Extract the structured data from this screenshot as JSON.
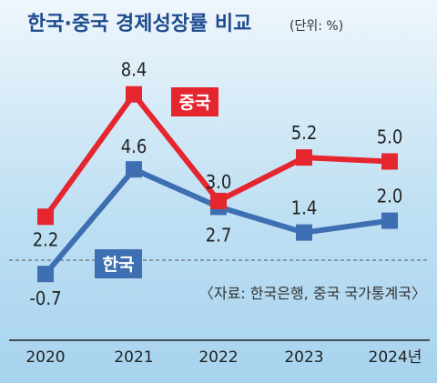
{
  "chart_data": {
    "type": "line",
    "title": "한국·중국 경제성장률 비교",
    "unit_label": "(단위: %)",
    "categories": [
      "2020",
      "2021",
      "2022",
      "2023",
      "2024년"
    ],
    "series": [
      {
        "name": "중국",
        "values": [
          2.2,
          8.4,
          3.0,
          5.2,
          5.0
        ],
        "color": "#e5262f",
        "labels": [
          "2.2",
          "8.4",
          "3.0",
          "5.2",
          "5.0"
        ]
      },
      {
        "name": "한국",
        "values": [
          -0.7,
          4.6,
          2.7,
          1.4,
          2.0
        ],
        "color": "#3d6fb2",
        "labels": [
          "-0.7",
          "4.6",
          "2.7",
          "1.4",
          "2.0"
        ]
      }
    ],
    "source": "〈자료: 한국은행, 중국 국가통계국〉",
    "ylim": [
      -1,
      10
    ],
    "zero_line": "dashed"
  }
}
